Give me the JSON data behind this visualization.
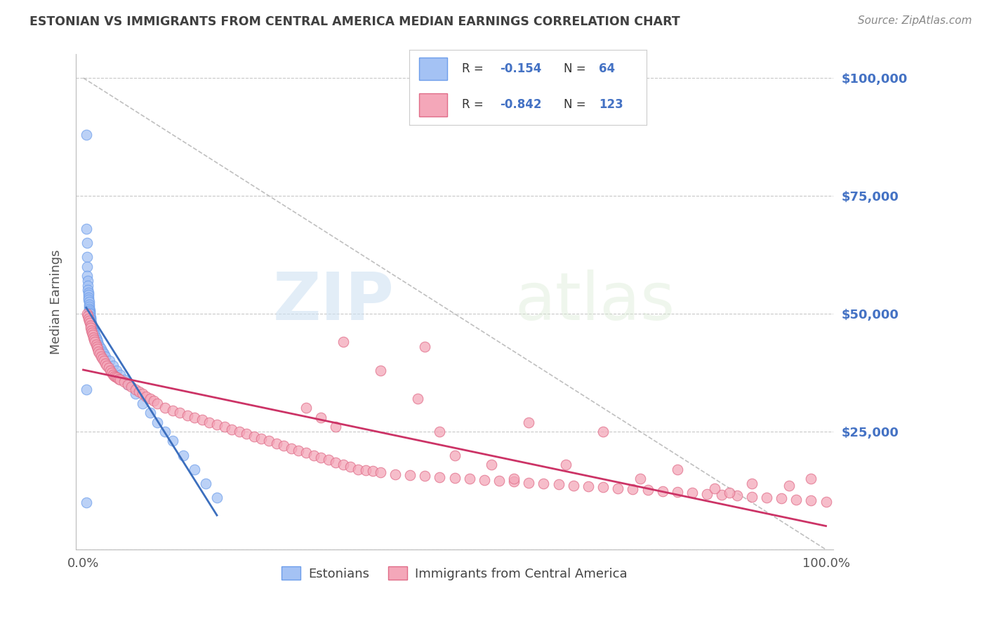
{
  "title": "ESTONIAN VS IMMIGRANTS FROM CENTRAL AMERICA MEDIAN EARNINGS CORRELATION CHART",
  "source": "Source: ZipAtlas.com",
  "ylabel": "Median Earnings",
  "blue_color": "#a4c2f4",
  "pink_color": "#f4a7b9",
  "blue_edge_color": "#6d9eeb",
  "pink_edge_color": "#e06c88",
  "blue_line_color": "#3c6fbe",
  "pink_line_color": "#cc3366",
  "dashed_line_color": "#b0b0b0",
  "grid_color": "#c8c8c8",
  "right_axis_color": "#4472c4",
  "title_color": "#404040",
  "legend_val_color": "#4472c4",
  "ylim": [
    0,
    105000
  ],
  "xlim": [
    -0.01,
    1.01
  ],
  "yticks": [
    0,
    25000,
    50000,
    75000,
    100000
  ],
  "ytick_labels": [
    "",
    "$25,000",
    "$50,000",
    "$75,000",
    "$100,000"
  ],
  "blue_scatter_x": [
    0.004,
    0.004,
    0.005,
    0.005,
    0.005,
    0.005,
    0.006,
    0.006,
    0.006,
    0.007,
    0.007,
    0.007,
    0.007,
    0.008,
    0.008,
    0.008,
    0.008,
    0.009,
    0.009,
    0.009,
    0.009,
    0.009,
    0.01,
    0.01,
    0.01,
    0.01,
    0.01,
    0.011,
    0.011,
    0.011,
    0.012,
    0.012,
    0.013,
    0.013,
    0.014,
    0.015,
    0.016,
    0.017,
    0.018,
    0.019,
    0.02,
    0.022,
    0.024,
    0.026,
    0.028,
    0.03,
    0.035,
    0.04,
    0.045,
    0.05,
    0.055,
    0.06,
    0.07,
    0.08,
    0.09,
    0.1,
    0.11,
    0.12,
    0.135,
    0.15,
    0.165,
    0.18,
    0.004,
    0.004
  ],
  "blue_scatter_y": [
    88000,
    68000,
    65000,
    62000,
    60000,
    58000,
    57000,
    56000,
    55000,
    54500,
    54000,
    53500,
    53000,
    52500,
    52000,
    51500,
    51000,
    50800,
    50500,
    50200,
    50000,
    49500,
    49200,
    49000,
    48800,
    48500,
    48200,
    48000,
    47800,
    47500,
    47200,
    47000,
    46800,
    46500,
    46200,
    46000,
    45500,
    45000,
    44500,
    44000,
    43500,
    43000,
    42500,
    42000,
    41500,
    41000,
    40000,
    39000,
    38000,
    37000,
    36000,
    35000,
    33000,
    31000,
    29000,
    27000,
    25000,
    23000,
    20000,
    17000,
    14000,
    11000,
    34000,
    10000
  ],
  "pink_scatter_x": [
    0.005,
    0.006,
    0.007,
    0.008,
    0.009,
    0.01,
    0.01,
    0.011,
    0.012,
    0.013,
    0.014,
    0.015,
    0.016,
    0.017,
    0.018,
    0.019,
    0.02,
    0.022,
    0.024,
    0.026,
    0.028,
    0.03,
    0.032,
    0.034,
    0.036,
    0.038,
    0.04,
    0.042,
    0.044,
    0.046,
    0.048,
    0.05,
    0.055,
    0.06,
    0.065,
    0.07,
    0.075,
    0.08,
    0.085,
    0.09,
    0.095,
    0.1,
    0.11,
    0.12,
    0.13,
    0.14,
    0.15,
    0.16,
    0.17,
    0.18,
    0.19,
    0.2,
    0.21,
    0.22,
    0.23,
    0.24,
    0.25,
    0.26,
    0.27,
    0.28,
    0.29,
    0.3,
    0.31,
    0.32,
    0.33,
    0.34,
    0.35,
    0.36,
    0.37,
    0.38,
    0.39,
    0.4,
    0.42,
    0.44,
    0.46,
    0.48,
    0.5,
    0.52,
    0.54,
    0.56,
    0.58,
    0.6,
    0.62,
    0.64,
    0.66,
    0.68,
    0.7,
    0.72,
    0.74,
    0.76,
    0.78,
    0.8,
    0.82,
    0.84,
    0.86,
    0.88,
    0.9,
    0.92,
    0.94,
    0.96,
    0.98,
    1.0,
    0.46,
    0.48,
    0.5,
    0.35,
    0.4,
    0.45,
    0.55,
    0.58,
    0.6,
    0.65,
    0.7,
    0.75,
    0.8,
    0.85,
    0.87,
    0.9,
    0.95,
    0.98,
    0.3,
    0.32,
    0.34
  ],
  "pink_scatter_y": [
    50000,
    49500,
    49000,
    48500,
    48000,
    47500,
    47000,
    46500,
    46000,
    45500,
    45000,
    44500,
    44000,
    43500,
    43000,
    42500,
    42000,
    41500,
    41000,
    40500,
    40000,
    39500,
    39000,
    38500,
    38000,
    37500,
    37000,
    36800,
    36600,
    36400,
    36200,
    36000,
    35500,
    35000,
    34500,
    34000,
    33500,
    33000,
    32500,
    32000,
    31500,
    31000,
    30000,
    29500,
    29000,
    28500,
    28000,
    27500,
    27000,
    26500,
    26000,
    25500,
    25000,
    24500,
    24000,
    23500,
    23000,
    22500,
    22000,
    21500,
    21000,
    20500,
    20000,
    19500,
    19000,
    18500,
    18000,
    17500,
    17000,
    16800,
    16600,
    16400,
    16000,
    15800,
    15600,
    15400,
    15200,
    15000,
    14800,
    14600,
    14400,
    14200,
    14000,
    13800,
    13600,
    13400,
    13200,
    13000,
    12800,
    12600,
    12400,
    12200,
    12000,
    11800,
    11600,
    11400,
    11200,
    11000,
    10800,
    10600,
    10400,
    10200,
    43000,
    25000,
    20000,
    44000,
    38000,
    32000,
    18000,
    15000,
    27000,
    18000,
    25000,
    15000,
    17000,
    13000,
    12000,
    14000,
    13500,
    15000,
    30000,
    28000,
    26000
  ]
}
